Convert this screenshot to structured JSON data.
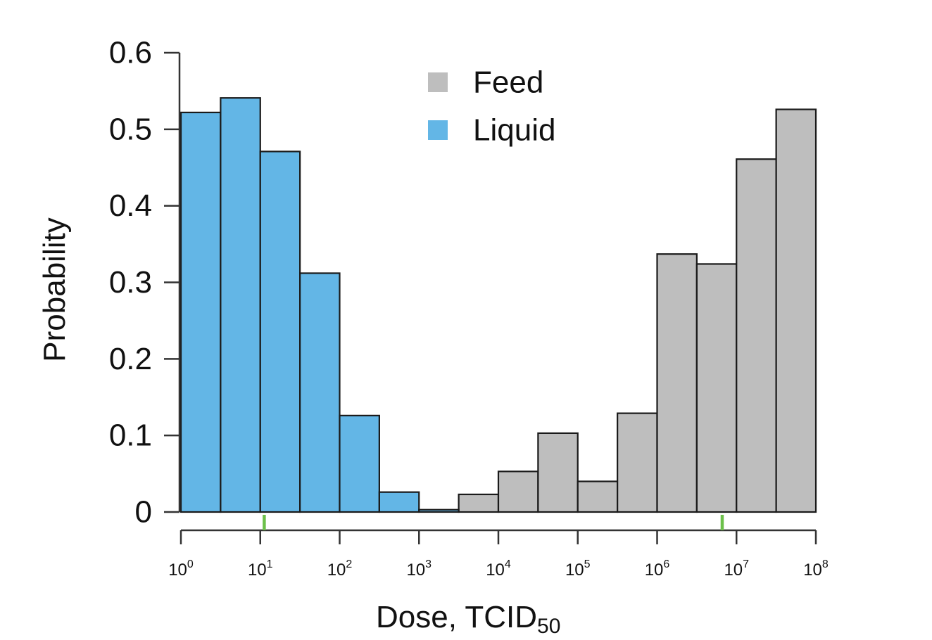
{
  "chart_data": {
    "type": "bar",
    "subtype": "histogram",
    "title": "",
    "xlabel": "Dose, TCID",
    "xlabel_subscript": "50",
    "ylabel": "Probability",
    "x_scale": "log10",
    "xlim_log10": [
      0,
      8
    ],
    "ylim": [
      0,
      0.6
    ],
    "bin_width_log10": 0.5,
    "y_ticks": [
      0,
      0.1,
      0.2,
      0.3,
      0.4,
      0.5,
      0.6
    ],
    "y_tick_labels": [
      "0",
      "0.1",
      "0.2",
      "0.3",
      "0.4",
      "0.5",
      "0.6"
    ],
    "x_ticks_log10": [
      0,
      1,
      2,
      3,
      4,
      5,
      6,
      7,
      8
    ],
    "x_tick_labels": [
      {
        "base": "10",
        "exp": "0"
      },
      {
        "base": "10",
        "exp": "1"
      },
      {
        "base": "10",
        "exp": "2"
      },
      {
        "base": "10",
        "exp": "3"
      },
      {
        "base": "10",
        "exp": "4"
      },
      {
        "base": "10",
        "exp": "5"
      },
      {
        "base": "10",
        "exp": "6"
      },
      {
        "base": "10",
        "exp": "7"
      },
      {
        "base": "10",
        "exp": "8"
      }
    ],
    "grid": false,
    "legend_position": "top-center",
    "series": [
      {
        "name": "Feed",
        "color": "#bebebe",
        "bins": [
          {
            "from_log10": 3.5,
            "to_log10": 4.0,
            "value": 0.023
          },
          {
            "from_log10": 4.0,
            "to_log10": 4.5,
            "value": 0.053
          },
          {
            "from_log10": 4.5,
            "to_log10": 5.0,
            "value": 0.103
          },
          {
            "from_log10": 5.0,
            "to_log10": 5.5,
            "value": 0.04
          },
          {
            "from_log10": 5.5,
            "to_log10": 6.0,
            "value": 0.129
          },
          {
            "from_log10": 6.0,
            "to_log10": 6.5,
            "value": 0.337
          },
          {
            "from_log10": 6.5,
            "to_log10": 7.0,
            "value": 0.324
          },
          {
            "from_log10": 7.0,
            "to_log10": 7.5,
            "value": 0.461
          },
          {
            "from_log10": 7.5,
            "to_log10": 8.0,
            "value": 0.526
          }
        ]
      },
      {
        "name": "Liquid",
        "color": "#63b6e6",
        "bins": [
          {
            "from_log10": 0.0,
            "to_log10": 0.5,
            "value": 0.522
          },
          {
            "from_log10": 0.5,
            "to_log10": 1.0,
            "value": 0.541
          },
          {
            "from_log10": 1.0,
            "to_log10": 1.5,
            "value": 0.471
          },
          {
            "from_log10": 1.5,
            "to_log10": 2.0,
            "value": 0.312
          },
          {
            "from_log10": 2.0,
            "to_log10": 2.5,
            "value": 0.126
          },
          {
            "from_log10": 2.5,
            "to_log10": 3.0,
            "value": 0.026
          },
          {
            "from_log10": 3.0,
            "to_log10": 3.5,
            "value": 0.003
          }
        ]
      }
    ],
    "markers": [
      {
        "name": "liquid-marker",
        "x_log10": 1.05,
        "color": "#6cc04a"
      },
      {
        "name": "feed-marker",
        "x_log10": 6.82,
        "color": "#6cc04a"
      }
    ]
  }
}
